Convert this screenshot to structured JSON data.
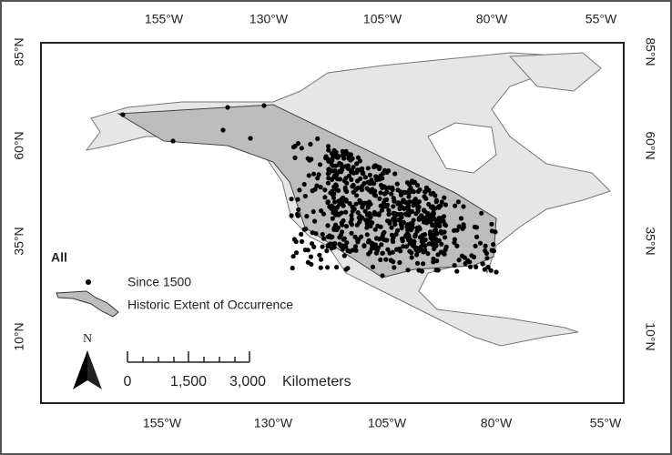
{
  "map": {
    "lon_labels_top": [
      "155°W",
      "130°W",
      "105°W",
      "80°W",
      "55°W"
    ],
    "lon_labels_bottom": [
      "155°W",
      "130°W",
      "105°W",
      "80°W",
      "55°W"
    ],
    "lat_labels_left": [
      "85°N",
      "60°N",
      "35°N",
      "10°N"
    ],
    "lat_labels_right": [
      "85°N",
      "60°N",
      "35°N",
      "10°N"
    ]
  },
  "legend": {
    "title": "All",
    "items": [
      "Since 1500",
      "Historic Extent of Occurrence"
    ]
  },
  "north_arrow": "N",
  "scale_bar": {
    "labels": [
      "0",
      "1,500",
      "3,000"
    ],
    "unit": "Kilometers"
  }
}
